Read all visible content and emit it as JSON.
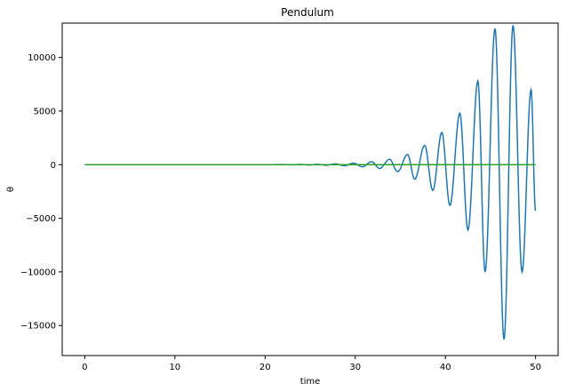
{
  "chart_data": {
    "type": "line",
    "title": "Pendulum",
    "xlabel": "time",
    "ylabel": "θ",
    "xlim": [
      -2.5,
      52.5
    ],
    "ylim": [
      -17800,
      13200
    ],
    "xticks": [
      0,
      10,
      20,
      30,
      40,
      50
    ],
    "yticks": [
      10000,
      5000,
      0,
      -5000,
      -10000,
      -15000
    ],
    "ytick_labels": [
      "10000",
      "5000",
      "0",
      "−5000",
      "−10000",
      "−15000"
    ],
    "grid": false,
    "series": [
      {
        "color": "#1f77b4",
        "x": [
          0,
          20,
          22,
          22.7,
          23.9,
          24.9,
          25.8,
          26.8,
          27.8,
          28.8,
          29.8,
          30.8,
          31.8,
          32.7,
          33.8,
          34.7,
          35.8,
          36.6,
          37.7,
          38.6,
          39.6,
          40.5,
          41.6,
          42.5,
          43.6,
          44.4,
          45.5,
          46.5,
          47.5,
          48.5,
          49.5,
          50
        ],
        "y": [
          0,
          0,
          10,
          -15,
          20,
          -30,
          35,
          -50,
          70,
          -100,
          140,
          -200,
          280,
          -350,
          500,
          -650,
          950,
          -1350,
          1800,
          -2400,
          3000,
          -3800,
          4800,
          -6100,
          7800,
          -10000,
          12700,
          -16300,
          13000,
          -10000,
          7000,
          -4300
        ]
      },
      {
        "color": "#2ca02c",
        "x": [
          0,
          50
        ],
        "y": [
          0,
          0
        ]
      }
    ]
  }
}
